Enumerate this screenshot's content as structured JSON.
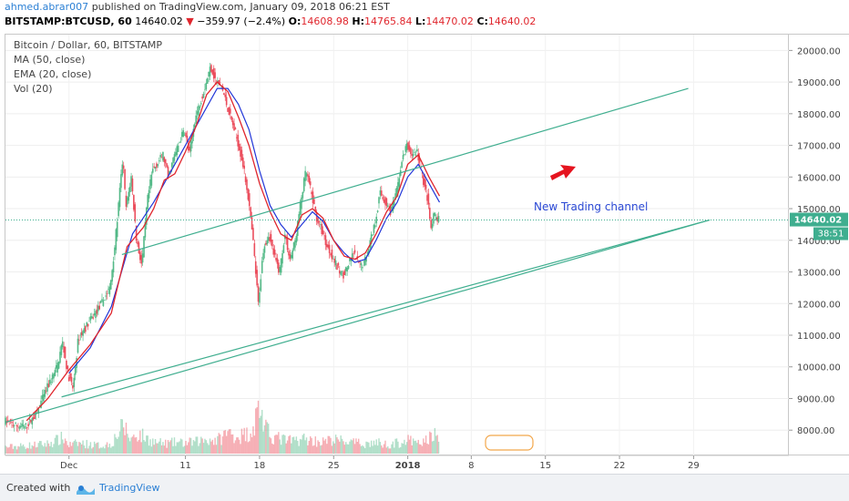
{
  "publication": {
    "author": "ahmed.abrar007",
    "text": "published on TradingView.com, January 09, 2018 06:21 EST"
  },
  "quote": {
    "symbol": "BITSTAMP:BTCUSD, 60",
    "last": "14640.02",
    "change": "−359.97 (−2.4%)",
    "o_label": "O:",
    "o": "14608.98",
    "h_label": "H:",
    "h": "14765.84",
    "l_label": "L:",
    "l": "14470.02",
    "c_label": "C:",
    "c": "14640.02"
  },
  "legend": {
    "title": "Bitcoin / Dollar, 60, BITSTAMP",
    "ma": "MA (50, close)",
    "ema": "EMA (20, close)",
    "vol": "Vol (20)"
  },
  "colors": {
    "up": "#53b987",
    "down": "#eb4d5c",
    "channel": "#3fae8f",
    "ma": "#2136d8",
    "ema": "#e0262d",
    "annotation_text": "#2a48d4",
    "price_tag": "#3fae8f"
  },
  "annotation": {
    "text": "New Trading channel",
    "arrow_icon": "red-arrow-icon"
  },
  "price_tag": {
    "price": "14640.02",
    "countdown": "38:51"
  },
  "chart_data": {
    "type": "candlestick",
    "y_ticks": [
      "20000.00",
      "19000.00",
      "18000.00",
      "17000.00",
      "16000.00",
      "15000.00",
      "14000.00",
      "13000.00",
      "12000.00",
      "11000.00",
      "10000.00",
      "9000.00",
      "8000.00"
    ],
    "y_values": [
      20000,
      19000,
      18000,
      17000,
      16000,
      15000,
      14000,
      13000,
      12000,
      11000,
      10000,
      9000,
      8000
    ],
    "ylim": [
      7200,
      20500
    ],
    "x_ticks": [
      "Dec",
      "11",
      "18",
      "25",
      "2018",
      "8",
      "15",
      "22",
      "29"
    ],
    "x_tick_days": [
      14,
      25,
      32,
      39,
      46,
      52,
      59,
      66,
      73
    ],
    "xlim_days": [
      8,
      82
    ],
    "price_path": [
      [
        8.0,
        8300
      ],
      [
        9.0,
        8150
      ],
      [
        10.0,
        8100
      ],
      [
        11.0,
        8500
      ],
      [
        12.0,
        9300
      ],
      [
        13.0,
        10000
      ],
      [
        13.5,
        10800
      ],
      [
        14.0,
        9800
      ],
      [
        14.5,
        9300
      ],
      [
        15.0,
        10900
      ],
      [
        16.0,
        11400
      ],
      [
        17.0,
        11900
      ],
      [
        18.0,
        12500
      ],
      [
        18.5,
        14000
      ],
      [
        19.2,
        16600
      ],
      [
        19.5,
        15000
      ],
      [
        20.0,
        16000
      ],
      [
        20.5,
        14000
      ],
      [
        21.0,
        13200
      ],
      [
        21.5,
        15200
      ],
      [
        22.0,
        16200
      ],
      [
        23.0,
        16700
      ],
      [
        23.5,
        16000
      ],
      [
        24.0,
        16600
      ],
      [
        25.0,
        17500
      ],
      [
        25.5,
        16700
      ],
      [
        26.0,
        17800
      ],
      [
        27.0,
        18900
      ],
      [
        27.5,
        19500
      ],
      [
        28.0,
        19000
      ],
      [
        28.5,
        18900
      ],
      [
        29.0,
        18300
      ],
      [
        30.0,
        17200
      ],
      [
        30.5,
        16500
      ],
      [
        31.0,
        15500
      ],
      [
        31.5,
        14000
      ],
      [
        32.0,
        12000
      ],
      [
        32.5,
        13800
      ],
      [
        33.0,
        14200
      ],
      [
        33.5,
        13500
      ],
      [
        34.0,
        13000
      ],
      [
        34.5,
        14200
      ],
      [
        35.0,
        13400
      ],
      [
        35.5,
        14000
      ],
      [
        36.0,
        15200
      ],
      [
        36.5,
        16200
      ],
      [
        37.0,
        15500
      ],
      [
        37.5,
        14700
      ],
      [
        38.0,
        14300
      ],
      [
        38.5,
        13800
      ],
      [
        39.0,
        13500
      ],
      [
        39.5,
        13100
      ],
      [
        40.0,
        12900
      ],
      [
        40.5,
        13200
      ],
      [
        41.0,
        13600
      ],
      [
        41.5,
        13200
      ],
      [
        42.0,
        13300
      ],
      [
        43.0,
        14500
      ],
      [
        43.5,
        15500
      ],
      [
        44.0,
        15200
      ],
      [
        44.5,
        14900
      ],
      [
        45.0,
        15400
      ],
      [
        45.5,
        16400
      ],
      [
        46.0,
        17000
      ],
      [
        46.5,
        16700
      ],
      [
        47.0,
        16800
      ],
      [
        47.5,
        16000
      ],
      [
        48.0,
        15300
      ],
      [
        48.3,
        14300
      ],
      [
        48.6,
        14800
      ],
      [
        49.0,
        14640
      ]
    ],
    "ma": [
      [
        14.0,
        9800
      ],
      [
        16.0,
        10600
      ],
      [
        18.0,
        11900
      ],
      [
        20.0,
        14200
      ],
      [
        22.0,
        15200
      ],
      [
        24.0,
        16400
      ],
      [
        26.0,
        17600
      ],
      [
        28.0,
        18800
      ],
      [
        29.0,
        18800
      ],
      [
        30.0,
        18300
      ],
      [
        31.0,
        17500
      ],
      [
        32.0,
        16200
      ],
      [
        33.0,
        15100
      ],
      [
        34.0,
        14500
      ],
      [
        35.0,
        14100
      ],
      [
        36.0,
        14500
      ],
      [
        37.0,
        14900
      ],
      [
        38.0,
        14600
      ],
      [
        39.0,
        14000
      ],
      [
        40.0,
        13600
      ],
      [
        41.0,
        13300
      ],
      [
        42.0,
        13400
      ],
      [
        43.0,
        14000
      ],
      [
        44.0,
        14700
      ],
      [
        45.0,
        15200
      ],
      [
        46.0,
        16000
      ],
      [
        47.0,
        16400
      ],
      [
        48.0,
        15800
      ],
      [
        49.0,
        15200
      ]
    ],
    "ema": [
      [
        10.0,
        8300
      ],
      [
        12.0,
        9000
      ],
      [
        14.0,
        9900
      ],
      [
        16.0,
        10700
      ],
      [
        18.0,
        11700
      ],
      [
        19.5,
        13800
      ],
      [
        21.0,
        14400
      ],
      [
        22.0,
        15000
      ],
      [
        23.0,
        15900
      ],
      [
        24.0,
        16100
      ],
      [
        25.0,
        16800
      ],
      [
        26.0,
        17600
      ],
      [
        27.0,
        18600
      ],
      [
        28.0,
        19000
      ],
      [
        29.0,
        18700
      ],
      [
        30.0,
        17900
      ],
      [
        31.0,
        17000
      ],
      [
        32.0,
        15800
      ],
      [
        33.0,
        14900
      ],
      [
        34.0,
        14200
      ],
      [
        35.0,
        14000
      ],
      [
        36.0,
        14800
      ],
      [
        37.0,
        15000
      ],
      [
        38.0,
        14700
      ],
      [
        39.0,
        14000
      ],
      [
        40.0,
        13500
      ],
      [
        41.0,
        13400
      ],
      [
        42.0,
        13600
      ],
      [
        43.0,
        14200
      ],
      [
        44.0,
        14900
      ],
      [
        45.0,
        15400
      ],
      [
        46.0,
        16400
      ],
      [
        47.0,
        16700
      ],
      [
        48.0,
        16000
      ],
      [
        49.0,
        15400
      ]
    ],
    "volume": [
      [
        8,
        1
      ],
      [
        10,
        1.2
      ],
      [
        12,
        1.5
      ],
      [
        13.5,
        2.4
      ],
      [
        14,
        1.3
      ],
      [
        15,
        1.6
      ],
      [
        16,
        1.4
      ],
      [
        17,
        1.2
      ],
      [
        18,
        1.5
      ],
      [
        18.5,
        2.8
      ],
      [
        19.2,
        4.2
      ],
      [
        19.8,
        2.2
      ],
      [
        20.5,
        3
      ],
      [
        21.5,
        2.2
      ],
      [
        22,
        1.8
      ],
      [
        23,
        1.5
      ],
      [
        24,
        1.7
      ],
      [
        25,
        1.6
      ],
      [
        26,
        1.8
      ],
      [
        27,
        2.2
      ],
      [
        28,
        2
      ],
      [
        29,
        3.2
      ],
      [
        30,
        2.6
      ],
      [
        31,
        3.1
      ],
      [
        31.5,
        4.4
      ],
      [
        32,
        7.5
      ],
      [
        32.5,
        3.8
      ],
      [
        33,
        2.8
      ],
      [
        34,
        2.2
      ],
      [
        35,
        1.9
      ],
      [
        36,
        2.3
      ],
      [
        37,
        2
      ],
      [
        38,
        1.8
      ],
      [
        39,
        2.1
      ],
      [
        40,
        1.9
      ],
      [
        41,
        1.6
      ],
      [
        42,
        1.5
      ],
      [
        43,
        1.7
      ],
      [
        44,
        1.4
      ],
      [
        45,
        1.6
      ],
      [
        46,
        2
      ],
      [
        47,
        1.5
      ],
      [
        48,
        2.2
      ],
      [
        48.4,
        3.4
      ],
      [
        49,
        1.5
      ]
    ],
    "channel_upper": [
      [
        19.0,
        13550
      ],
      [
        72.5,
        18800
      ]
    ],
    "channel_mid": [
      [
        8.0,
        8250
      ],
      [
        74.5,
        14640
      ]
    ],
    "channel_lower": [
      [
        13.3,
        9050
      ],
      [
        74.5,
        14640
      ]
    ],
    "last_price": 14640.02
  }
}
